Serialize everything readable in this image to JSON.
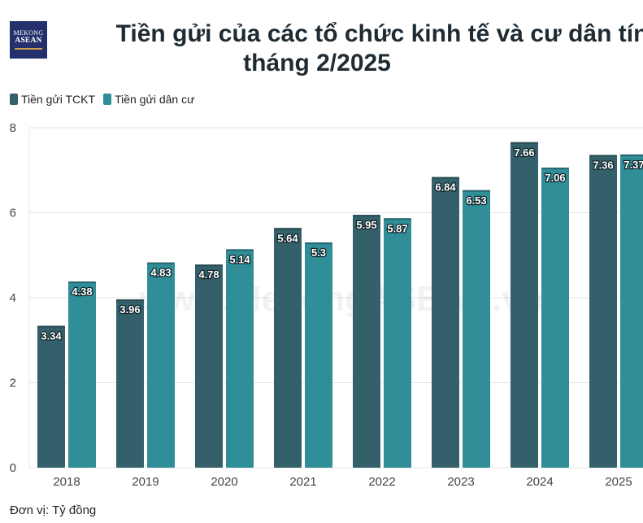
{
  "brand": {
    "line1": "MEKONG",
    "line2": "ASEAN",
    "watermark": "www.MekongASEAN.vn"
  },
  "title_line1": "Tiền gửi của các tổ chức kinh tế và cư dân tính đến",
  "title_line2": "tháng 2/2025",
  "unit_note": "Đơn vị: Tỷ đồng",
  "colors": {
    "tckt": "#33606a",
    "dancu": "#2f8e98",
    "grid": "#e4e4e4",
    "axis_text": "#444444"
  },
  "chart_data": {
    "type": "bar",
    "categories": [
      "2018",
      "2019",
      "2020",
      "2021",
      "2022",
      "2023",
      "2024",
      "2025"
    ],
    "series": [
      {
        "name": "Tiền gửi TCKT",
        "values": [
          3.34,
          3.96,
          4.78,
          5.64,
          5.95,
          6.84,
          7.66,
          7.36
        ]
      },
      {
        "name": "Tiền gửi dân cư",
        "values": [
          4.38,
          4.83,
          5.14,
          5.3,
          5.87,
          6.53,
          7.06,
          7.37
        ]
      }
    ],
    "ylim": [
      0,
      8
    ],
    "yticks": [
      0,
      2,
      4,
      6,
      8
    ],
    "grid": true,
    "legend": "top-left"
  }
}
